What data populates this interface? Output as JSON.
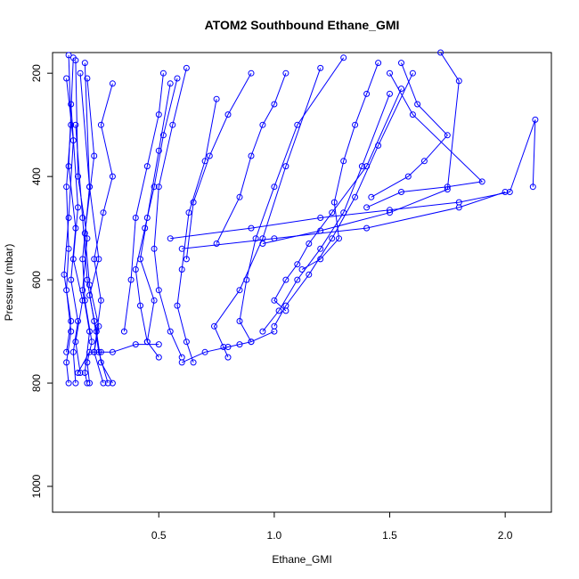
{
  "chart_data": {
    "type": "scatter",
    "title": "ATOM2 Southbound Ethane_GMI",
    "xlabel": "Ethane_GMI",
    "ylabel": "Pressure (mbar)",
    "xlim": [
      0.04,
      2.2
    ],
    "ylim": [
      1050,
      160
    ],
    "y_reversed": true,
    "x_ticks": [
      0.5,
      1.0,
      1.5,
      2.0
    ],
    "x_tick_labels": [
      "0.5",
      "1.0",
      "1.5",
      "2.0"
    ],
    "y_ticks": [
      200,
      400,
      600,
      800,
      1000
    ],
    "y_tick_labels": [
      "200",
      "400",
      "600",
      "800",
      "1000"
    ],
    "grid": false,
    "legend": "none",
    "color": "#0000ff",
    "marker": "open-circle",
    "series": [
      {
        "x": [
          0.11,
          0.1,
          0.12,
          0.1,
          0.11,
          0.1,
          0.12,
          0.11
        ],
        "y": [
          800,
          760,
          700,
          620,
          540,
          420,
          300,
          165
        ]
      },
      {
        "x": [
          0.14,
          0.13,
          0.15,
          0.12,
          0.14,
          0.11,
          0.13
        ],
        "y": [
          800,
          740,
          680,
          600,
          500,
          380,
          170
        ]
      },
      {
        "x": [
          0.19,
          0.18,
          0.2,
          0.17,
          0.19,
          0.15,
          0.14
        ],
        "y": [
          800,
          780,
          700,
          620,
          520,
          400,
          175
        ]
      },
      {
        "x": [
          0.2,
          0.19,
          0.21,
          0.18,
          0.17,
          0.2,
          0.16
        ],
        "y": [
          800,
          760,
          720,
          640,
          560,
          420,
          200
        ]
      },
      {
        "x": [
          0.26,
          0.22,
          0.24,
          0.2,
          0.18,
          0.22,
          0.19
        ],
        "y": [
          800,
          740,
          690,
          610,
          510,
          360,
          210
        ]
      },
      {
        "x": [
          0.3,
          0.25,
          0.23,
          0.2,
          0.24,
          0.2,
          0.18
        ],
        "y": [
          800,
          760,
          700,
          630,
          560,
          420,
          180
        ]
      },
      {
        "x": [
          0.28,
          0.24,
          0.22,
          0.19,
          0.17,
          0.14
        ],
        "y": [
          800,
          740,
          680,
          600,
          480,
          300
        ]
      },
      {
        "x": [
          0.22,
          0.25,
          0.22,
          0.26,
          0.3,
          0.25,
          0.3
        ],
        "y": [
          740,
          640,
          560,
          470,
          400,
          300,
          220
        ]
      },
      {
        "x": [
          0.5,
          0.45,
          0.48,
          0.42,
          0.45,
          0.5,
          0.55
        ],
        "y": [
          750,
          720,
          640,
          560,
          480,
          350,
          220
        ]
      },
      {
        "x": [
          0.6,
          0.55,
          0.5,
          0.48,
          0.5,
          0.56,
          0.62
        ],
        "y": [
          750,
          700,
          620,
          540,
          420,
          300,
          190
        ]
      },
      {
        "x": [
          0.65,
          0.62,
          0.58,
          0.6,
          0.63,
          0.7,
          0.75
        ],
        "y": [
          760,
          720,
          650,
          580,
          470,
          370,
          250
        ]
      },
      {
        "x": [
          0.45,
          0.42,
          0.4,
          0.44,
          0.48,
          0.52,
          0.58
        ],
        "y": [
          720,
          650,
          580,
          500,
          420,
          320,
          210
        ]
      },
      {
        "x": [
          0.8,
          0.78,
          0.74,
          0.85,
          0.95,
          1.05,
          1.2
        ],
        "y": [
          750,
          730,
          690,
          620,
          520,
          380,
          190
        ]
      },
      {
        "x": [
          0.9,
          0.85,
          0.88,
          0.92,
          1.0,
          1.1,
          1.3
        ],
        "y": [
          720,
          680,
          600,
          520,
          420,
          300,
          170
        ]
      },
      {
        "x": [
          1.05,
          1.0,
          1.05,
          1.1,
          1.15,
          1.25,
          1.4,
          1.55
        ],
        "y": [
          660,
          640,
          600,
          570,
          530,
          470,
          380,
          230
        ]
      },
      {
        "x": [
          1.0,
          1.05,
          1.15,
          1.25,
          1.35,
          1.45,
          1.6
        ],
        "y": [
          690,
          650,
          590,
          520,
          440,
          340,
          200
        ]
      },
      {
        "x": [
          0.95,
          1.02,
          1.1,
          1.2,
          1.3,
          1.38,
          1.5
        ],
        "y": [
          700,
          660,
          600,
          540,
          470,
          380,
          240
        ]
      },
      {
        "x": [
          1.12,
          1.2,
          1.28,
          1.26,
          1.3,
          1.35,
          1.4,
          1.45
        ],
        "y": [
          580,
          560,
          520,
          450,
          370,
          300,
          240,
          180
        ]
      },
      {
        "x": [
          1.4,
          1.55,
          1.75,
          1.9,
          1.6,
          1.5
        ],
        "y": [
          460,
          430,
          420,
          410,
          280,
          200
        ]
      },
      {
        "x": [
          1.42,
          1.58,
          1.65,
          1.75,
          1.62,
          1.55
        ],
        "y": [
          440,
          400,
          370,
          320,
          260,
          180
        ]
      },
      {
        "x": [
          0.55,
          0.9,
          1.2,
          1.5,
          1.8,
          2.02,
          2.13,
          2.12
        ],
        "y": [
          520,
          500,
          480,
          465,
          450,
          430,
          290,
          420
        ]
      },
      {
        "x": [
          0.6,
          1.0,
          1.4,
          1.8,
          2.0
        ],
        "y": [
          540,
          520,
          500,
          460,
          430
        ]
      },
      {
        "x": [
          0.95,
          1.2,
          1.5,
          1.75,
          1.8,
          1.72
        ],
        "y": [
          530,
          505,
          470,
          425,
          215,
          160
        ]
      },
      {
        "x": [
          0.75,
          0.85,
          0.9,
          0.95,
          1.0,
          1.05
        ],
        "y": [
          530,
          440,
          360,
          300,
          260,
          200
        ]
      },
      {
        "x": [
          0.62,
          0.65,
          0.72,
          0.8,
          0.9
        ],
        "y": [
          560,
          450,
          360,
          280,
          200
        ]
      },
      {
        "x": [
          0.35,
          0.38,
          0.4,
          0.45,
          0.5,
          0.52
        ],
        "y": [
          700,
          600,
          480,
          380,
          280,
          200
        ]
      },
      {
        "x": [
          0.1,
          0.12,
          0.09,
          0.11,
          0.13,
          0.1
        ],
        "y": [
          740,
          680,
          590,
          480,
          330,
          210
        ]
      },
      {
        "x": [
          0.16,
          0.14,
          0.17,
          0.13,
          0.15,
          0.12
        ],
        "y": [
          780,
          720,
          640,
          560,
          460,
          260
        ]
      },
      {
        "x": [
          0.15,
          0.2,
          0.25,
          0.3,
          0.4,
          0.5
        ],
        "y": [
          780,
          740,
          740,
          740,
          725,
          725
        ]
      },
      {
        "x": [
          0.6,
          0.7,
          0.8,
          0.85,
          0.9,
          1.0
        ],
        "y": [
          760,
          740,
          730,
          725,
          720,
          700
        ]
      }
    ]
  }
}
